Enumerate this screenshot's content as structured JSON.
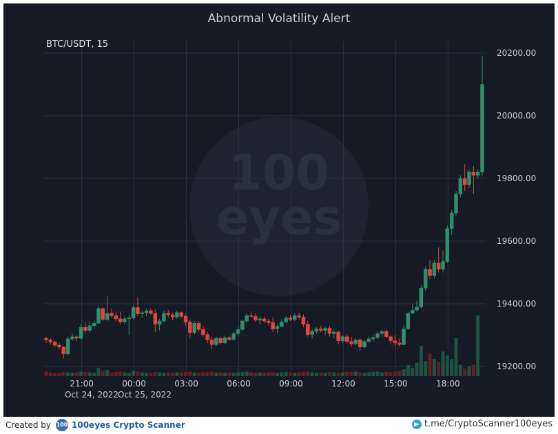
{
  "title": "Abnormal Volatility Alert",
  "symbol_label": "BTC/USDT, 15",
  "watermark": "100 eyes",
  "footer": {
    "created_by": "Created by",
    "brand": "100eyes Crypto Scanner",
    "telegram": "t.me/CryptoScanner100eyes"
  },
  "colors": {
    "background": "#151a24",
    "up": "#2f8f6a",
    "down": "#e0453f",
    "grid": "#2c3240",
    "text": "#c9ccd2"
  },
  "chart_data": {
    "type": "candlestick",
    "title": "Abnormal Volatility Alert",
    "symbol": "BTC/USDT",
    "interval": "15",
    "y_ticks": [
      "19200.00",
      "19400.00",
      "19600.00",
      "19800.00",
      "20000.00",
      "20200.00"
    ],
    "ylim": [
      19180,
      20230
    ],
    "y_axis_position": "right",
    "x_ticks": [
      "21:00",
      "00:00",
      "03:00",
      "06:00",
      "09:00",
      "12:00",
      "15:00",
      "18:00"
    ],
    "date_labels": [
      "Oct 24, 2022",
      "Oct 25, 2022"
    ],
    "grid": true,
    "candles": [
      [
        19290,
        19295,
        19275,
        19285
      ],
      [
        19285,
        19290,
        19270,
        19278
      ],
      [
        19278,
        19282,
        19262,
        19268
      ],
      [
        19268,
        19275,
        19255,
        19262
      ],
      [
        19262,
        19265,
        19225,
        19240
      ],
      [
        19240,
        19295,
        19235,
        19288
      ],
      [
        19288,
        19305,
        19282,
        19295
      ],
      [
        19295,
        19300,
        19280,
        19290
      ],
      [
        19290,
        19335,
        19285,
        19325
      ],
      [
        19325,
        19340,
        19305,
        19315
      ],
      [
        19315,
        19345,
        19308,
        19330
      ],
      [
        19330,
        19345,
        19320,
        19338
      ],
      [
        19338,
        19395,
        19335,
        19385
      ],
      [
        19385,
        19390,
        19345,
        19350
      ],
      [
        19350,
        19425,
        19345,
        19370
      ],
      [
        19370,
        19385,
        19355,
        19362
      ],
      [
        19362,
        19375,
        19345,
        19352
      ],
      [
        19352,
        19375,
        19335,
        19342
      ],
      [
        19342,
        19360,
        19335,
        19352
      ],
      [
        19352,
        19365,
        19300,
        19355
      ],
      [
        19355,
        19395,
        19350,
        19388
      ],
      [
        19388,
        19420,
        19360,
        19368
      ],
      [
        19368,
        19380,
        19355,
        19372
      ],
      [
        19372,
        19385,
        19360,
        19378
      ],
      [
        19378,
        19385,
        19365,
        19370
      ],
      [
        19370,
        19382,
        19310,
        19335
      ],
      [
        19335,
        19352,
        19315,
        19345
      ],
      [
        19345,
        19378,
        19340,
        19370
      ],
      [
        19370,
        19380,
        19355,
        19365
      ],
      [
        19365,
        19372,
        19348,
        19358
      ],
      [
        19358,
        19378,
        19352,
        19372
      ],
      [
        19372,
        19375,
        19355,
        19360
      ],
      [
        19360,
        19368,
        19330,
        19342
      ],
      [
        19342,
        19350,
        19290,
        19308
      ],
      [
        19308,
        19345,
        19302,
        19338
      ],
      [
        19338,
        19345,
        19310,
        19318
      ],
      [
        19318,
        19330,
        19295,
        19302
      ],
      [
        19302,
        19310,
        19275,
        19285
      ],
      [
        19285,
        19295,
        19255,
        19270
      ],
      [
        19270,
        19295,
        19265,
        19290
      ],
      [
        19290,
        19295,
        19270,
        19275
      ],
      [
        19275,
        19298,
        19272,
        19292
      ],
      [
        19292,
        19298,
        19280,
        19286
      ],
      [
        19286,
        19312,
        19282,
        19305
      ],
      [
        19305,
        19325,
        19298,
        19318
      ],
      [
        19318,
        19350,
        19315,
        19345
      ],
      [
        19345,
        19370,
        19340,
        19362
      ],
      [
        19362,
        19375,
        19355,
        19360
      ],
      [
        19360,
        19370,
        19342,
        19348
      ],
      [
        19348,
        19360,
        19336,
        19352
      ],
      [
        19352,
        19360,
        19338,
        19345
      ],
      [
        19345,
        19352,
        19330,
        19340
      ],
      [
        19340,
        19355,
        19310,
        19320
      ],
      [
        19320,
        19335,
        19305,
        19328
      ],
      [
        19328,
        19350,
        19325,
        19342
      ],
      [
        19342,
        19362,
        19338,
        19355
      ],
      [
        19355,
        19365,
        19345,
        19350
      ],
      [
        19350,
        19370,
        19345,
        19362
      ],
      [
        19362,
        19372,
        19350,
        19358
      ],
      [
        19358,
        19366,
        19325,
        19335
      ],
      [
        19335,
        19345,
        19295,
        19302
      ],
      [
        19302,
        19318,
        19290,
        19312
      ],
      [
        19312,
        19325,
        19305,
        19320
      ],
      [
        19320,
        19330,
        19308,
        19315
      ],
      [
        19315,
        19328,
        19300,
        19322
      ],
      [
        19322,
        19330,
        19295,
        19305
      ],
      [
        19305,
        19318,
        19290,
        19310
      ],
      [
        19310,
        19315,
        19270,
        19282
      ],
      [
        19282,
        19300,
        19275,
        19295
      ],
      [
        19295,
        19302,
        19272,
        19280
      ],
      [
        19280,
        19295,
        19262,
        19272
      ],
      [
        19272,
        19290,
        19268,
        19285
      ],
      [
        19285,
        19290,
        19250,
        19262
      ],
      [
        19262,
        19285,
        19258,
        19280
      ],
      [
        19280,
        19296,
        19275,
        19288
      ],
      [
        19288,
        19300,
        19280,
        19292
      ],
      [
        19292,
        19312,
        19288,
        19305
      ],
      [
        19305,
        19318,
        19295,
        19312
      ],
      [
        19312,
        19318,
        19290,
        19295
      ],
      [
        19295,
        19300,
        19270,
        19282
      ],
      [
        19282,
        19300,
        19265,
        19275
      ],
      [
        19275,
        19290,
        19262,
        19270
      ],
      [
        19270,
        19330,
        19268,
        19320
      ],
      [
        19320,
        19375,
        19318,
        19370
      ],
      [
        19370,
        19400,
        19368,
        19380
      ],
      [
        19380,
        19410,
        19375,
        19390
      ],
      [
        19390,
        19460,
        19385,
        19450
      ],
      [
        19450,
        19520,
        19440,
        19510
      ],
      [
        19510,
        19540,
        19480,
        19490
      ],
      [
        19490,
        19540,
        19480,
        19530
      ],
      [
        19530,
        19580,
        19500,
        19510
      ],
      [
        19510,
        19570,
        19500,
        19535
      ],
      [
        19535,
        19650,
        19530,
        19640
      ],
      [
        19640,
        19700,
        19620,
        19690
      ],
      [
        19690,
        19760,
        19680,
        19750
      ],
      [
        19750,
        19810,
        19740,
        19800
      ],
      [
        19800,
        19845,
        19760,
        19780
      ],
      [
        19780,
        19830,
        19770,
        19820
      ],
      [
        19820,
        19840,
        19750,
        19810
      ],
      [
        19810,
        19830,
        19800,
        19820
      ],
      [
        19820,
        20190,
        19810,
        20100
      ]
    ],
    "volumes": [
      12,
      10,
      8,
      9,
      11,
      10,
      9,
      10,
      12,
      11,
      10,
      9,
      22,
      14,
      16,
      10,
      11,
      12,
      10,
      9,
      14,
      12,
      10,
      9,
      9,
      11,
      10,
      9,
      10,
      9,
      10,
      10,
      11,
      12,
      10,
      9,
      10,
      11,
      12,
      9,
      10,
      9,
      10,
      9,
      10,
      11,
      12,
      10,
      9,
      10,
      9,
      10,
      11,
      9,
      10,
      11,
      10,
      9,
      10,
      11,
      12,
      10,
      9,
      10,
      9,
      11,
      10,
      9,
      10,
      12,
      11,
      12,
      10,
      9,
      10,
      11,
      12,
      10,
      11,
      10,
      12,
      14,
      18,
      30,
      22,
      35,
      80,
      40,
      60,
      45,
      38,
      65,
      55,
      45,
      100,
      30,
      20,
      25,
      30,
      160
    ]
  }
}
